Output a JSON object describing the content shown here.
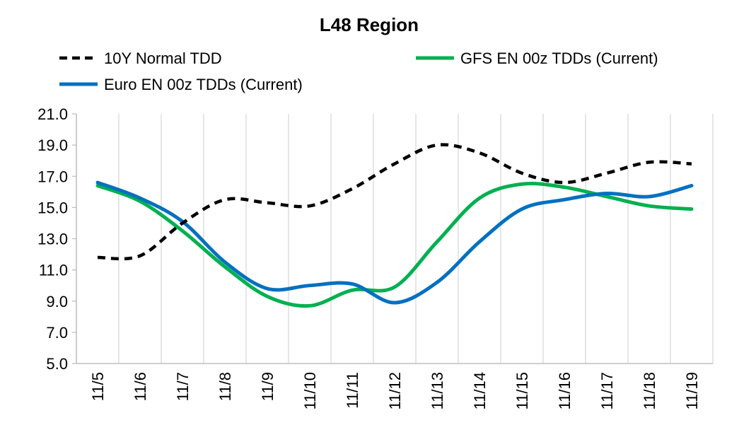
{
  "chart_data": {
    "type": "line",
    "title": "L48 Region",
    "xlabel": "",
    "ylabel": "",
    "categories": [
      "11/5",
      "11/6",
      "11/7",
      "11/8",
      "11/9",
      "11/10",
      "11/11",
      "11/12",
      "11/13",
      "11/14",
      "11/15",
      "11/16",
      "11/17",
      "11/18",
      "11/19"
    ],
    "ylim": [
      5.0,
      21.0
    ],
    "yticks": [
      "5.0",
      "7.0",
      "9.0",
      "11.0",
      "13.0",
      "15.0",
      "17.0",
      "19.0",
      "21.0"
    ],
    "grid": "vertical",
    "legend_position": "top",
    "series": [
      {
        "name": "10Y Normal TDD",
        "color": "#000000",
        "style": "dashed",
        "values": [
          11.8,
          11.9,
          14.0,
          15.5,
          15.3,
          15.1,
          16.2,
          17.8,
          19.0,
          18.5,
          17.2,
          16.6,
          17.2,
          17.9,
          17.8
        ]
      },
      {
        "name": "GFS EN 00z TDDs (Current)",
        "color": "#00B050",
        "style": "solid",
        "values": [
          16.4,
          15.4,
          13.5,
          11.2,
          9.3,
          8.7,
          9.7,
          9.9,
          12.8,
          15.6,
          16.5,
          16.3,
          15.7,
          15.1,
          14.9
        ]
      },
      {
        "name": "Euro EN 00z TDDs (Current)",
        "color": "#0070C0",
        "style": "solid",
        "values": [
          16.6,
          15.6,
          14.1,
          11.5,
          9.8,
          10.0,
          10.1,
          8.9,
          10.2,
          12.8,
          14.9,
          15.5,
          15.9,
          15.7,
          16.4
        ]
      }
    ]
  }
}
